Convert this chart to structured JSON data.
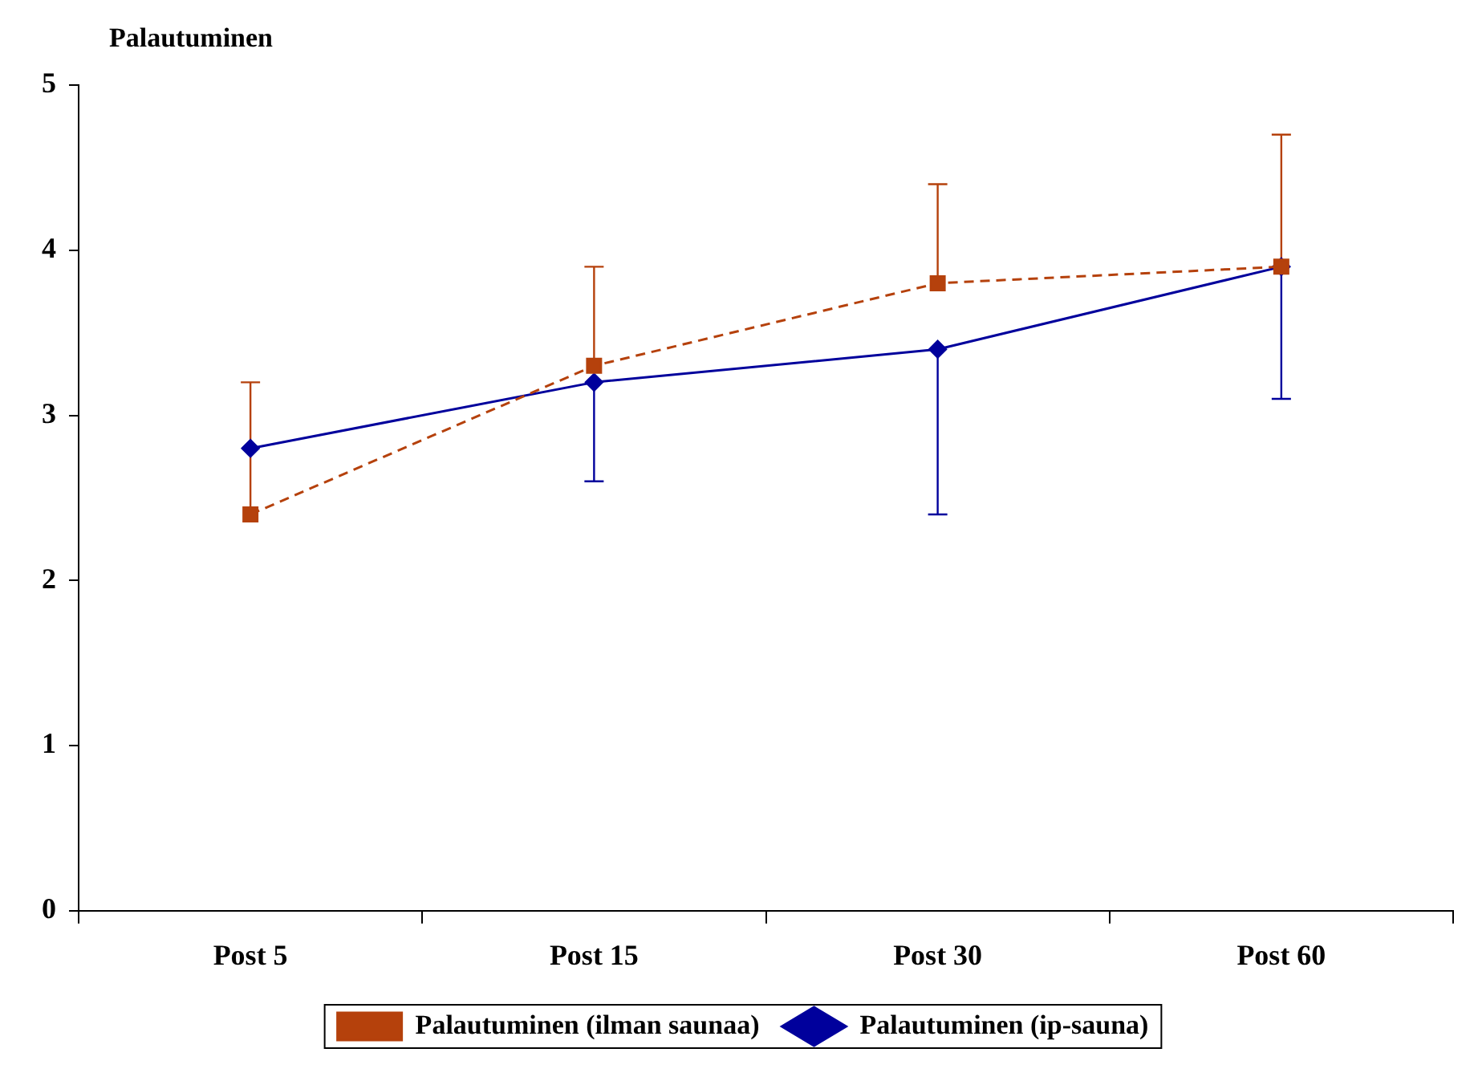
{
  "chart_data": {
    "type": "line",
    "ylabel": "Palautuminen",
    "categories": [
      "Post 5",
      "Post 15",
      "Post 30",
      "Post 60"
    ],
    "series": [
      {
        "name": "Palautuminen (ip-sauna)",
        "color": "#00009c",
        "values": [
          2.8,
          3.2,
          3.4,
          3.9
        ],
        "marker": "diamond",
        "line_style": "solid",
        "errors": [
          null,
          [
            2.6,
            3.2
          ],
          [
            2.4,
            3.4
          ],
          [
            3.1,
            3.9
          ]
        ]
      },
      {
        "name": "Palautuminen (ilman saunaa)",
        "color": "#b5410c",
        "values": [
          2.4,
          3.3,
          3.8,
          3.9
        ],
        "marker": "square",
        "line_style": "dashed",
        "errors": [
          [
            2.4,
            3.2
          ],
          [
            3.3,
            3.9
          ],
          [
            3.8,
            4.4
          ],
          [
            3.9,
            4.7
          ]
        ]
      }
    ],
    "ylim": [
      0,
      5
    ],
    "yticks": [
      0,
      1,
      2,
      3,
      4,
      5
    ],
    "grid": false,
    "legend": "bottom"
  }
}
